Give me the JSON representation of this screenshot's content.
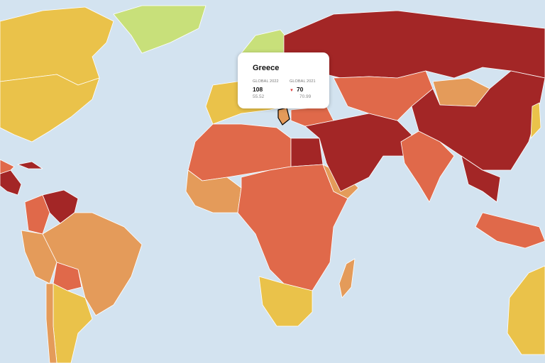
{
  "colors": {
    "ocean": "#d3e3f0",
    "good": "#c8e07a",
    "satisfactory": "#eac24a",
    "problematic": "#e49b5a",
    "difficult": "#e0694a",
    "very_serious": "#a32626"
  },
  "tooltip": {
    "country": "Greece",
    "global_2022": {
      "label": "GLOBAL 2022",
      "rank": "108",
      "score": "55.52"
    },
    "global_2021": {
      "label": "GLOBAL 2021",
      "rank": "70",
      "score": "70.99",
      "trend_icon": "arrow-down-icon"
    }
  }
}
